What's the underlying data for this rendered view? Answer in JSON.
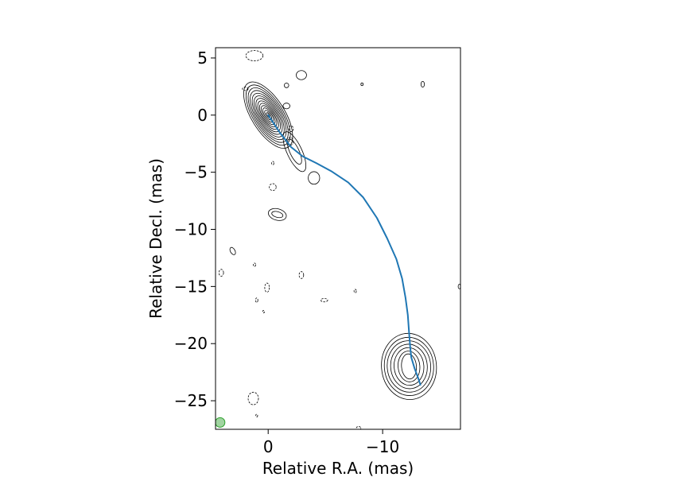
{
  "chart_data": {
    "type": "line",
    "xlabel": "Relative R.A. (mas)",
    "ylabel": "Relative Decl. (mas)",
    "xlim": [
      4.6,
      -16.8
    ],
    "ylim": [
      -27.5,
      5.9
    ],
    "x_ticks": [
      0,
      -10
    ],
    "x_tick_labels": [
      "0",
      "−10"
    ],
    "y_ticks": [
      5,
      0,
      -5,
      -10,
      -15,
      -20,
      -25
    ],
    "y_tick_labels": [
      "5",
      "0",
      "−5",
      "−10",
      "−15",
      "−20",
      "−25"
    ],
    "grid": false,
    "colors": {
      "jet_path": "#1f77b4",
      "contour": "#000000",
      "beam": "#2ca02c"
    },
    "series": [
      {
        "x": [
          0.0,
          -1.0,
          -2.0,
          -3.0,
          -4.2,
          -5.5,
          -7.0,
          -8.3,
          -9.5,
          -10.4,
          -11.2,
          -11.7,
          -12.0,
          -12.2,
          -12.3,
          -12.4,
          -12.5,
          -12.8,
          -13.1,
          -13.3
        ],
        "y": [
          0.0,
          -1.5,
          -2.8,
          -3.6,
          -4.2,
          -4.9,
          -5.9,
          -7.2,
          -9.0,
          -10.8,
          -12.6,
          -14.3,
          -16.0,
          -17.5,
          -18.9,
          -20.2,
          -21.2,
          -22.2,
          -23.0,
          -23.6
        ]
      }
    ],
    "contour_groups": [
      {
        "component": "core",
        "center": [
          0.0,
          0.0
        ],
        "levels": [
          {
            "a": 1.45,
            "b": 3.3,
            "rot": 32,
            "dash": false
          },
          {
            "a": 1.3,
            "b": 3.0,
            "rot": 32,
            "dash": false
          },
          {
            "a": 1.17,
            "b": 2.72,
            "rot": 32,
            "dash": false
          },
          {
            "a": 1.05,
            "b": 2.45,
            "rot": 32,
            "dash": false
          },
          {
            "a": 0.93,
            "b": 2.18,
            "rot": 32,
            "dash": false
          },
          {
            "a": 0.82,
            "b": 1.92,
            "rot": 32,
            "dash": false
          },
          {
            "a": 0.71,
            "b": 1.67,
            "rot": 32,
            "dash": false
          },
          {
            "a": 0.6,
            "b": 1.42,
            "rot": 32,
            "dash": false
          },
          {
            "a": 0.5,
            "b": 1.18,
            "rot": 32,
            "dash": false
          },
          {
            "a": 0.4,
            "b": 0.95,
            "rot": 32,
            "dash": false
          },
          {
            "a": 0.3,
            "b": 0.72,
            "rot": 32,
            "dash": false
          },
          {
            "a": 0.2,
            "b": 0.48,
            "rot": 32,
            "dash": false
          },
          {
            "a": 0.1,
            "b": 0.24,
            "rot": 32,
            "dash": false
          }
        ]
      },
      {
        "component": "inner-jet",
        "center": [
          -2.3,
          -3.2
        ],
        "levels": [
          {
            "a": 0.65,
            "b": 1.9,
            "rot": 25,
            "dash": false
          },
          {
            "a": 0.4,
            "b": 1.2,
            "rot": 25,
            "dash": false
          }
        ]
      },
      {
        "component": "jet-knot",
        "center": [
          -4.0,
          -5.5
        ],
        "levels": [
          {
            "a": 0.5,
            "b": 0.55,
            "rot": 0,
            "dash": false
          }
        ]
      },
      {
        "component": "southern-lobe",
        "center": [
          -12.3,
          -22.0
        ],
        "levels": [
          {
            "a": 2.4,
            "b": 2.9,
            "rot": 5,
            "dash": false
          },
          {
            "a": 2.15,
            "b": 2.55,
            "rot": 5,
            "dash": false
          },
          {
            "a": 1.9,
            "b": 2.25,
            "rot": 5,
            "dash": false
          },
          {
            "a": 1.6,
            "b": 1.95,
            "rot": 5,
            "dash": false
          },
          {
            "a": 1.3,
            "b": 1.65,
            "rot": 5,
            "dash": false
          },
          {
            "a": 0.95,
            "b": 1.35,
            "rot": 5,
            "dash": false
          },
          {
            "a": 0.65,
            "b": 1.1,
            "rot": 5,
            "dash": false
          }
        ]
      },
      {
        "component": "blob-8",
        "center": [
          -0.8,
          -8.7
        ],
        "levels": [
          {
            "a": 0.8,
            "b": 0.5,
            "rot": -15,
            "dash": false
          },
          {
            "a": 0.5,
            "b": 0.25,
            "rot": -15,
            "dash": false
          }
        ]
      },
      {
        "component": "noise",
        "center": [
          0,
          0
        ],
        "levels": [
          {
            "x": -2.9,
            "y": 3.5,
            "a": 0.45,
            "b": 0.4,
            "rot": 0,
            "dash": false
          },
          {
            "x": -1.6,
            "y": 0.8,
            "a": 0.3,
            "b": 0.25,
            "rot": 0,
            "dash": false
          },
          {
            "x": -1.6,
            "y": 2.6,
            "a": 0.2,
            "b": 0.2,
            "rot": 0,
            "dash": false
          },
          {
            "x": -8.2,
            "y": 2.7,
            "a": 0.1,
            "b": 0.12,
            "rot": 0,
            "dash": false
          },
          {
            "x": -13.5,
            "y": 2.7,
            "a": 0.15,
            "b": 0.25,
            "rot": 0,
            "dash": false
          },
          {
            "x": -2.0,
            "y": -1.2,
            "a": 0.2,
            "b": 0.25,
            "rot": 0,
            "dash": true
          },
          {
            "x": -1.9,
            "y": -2.3,
            "a": 0.3,
            "b": 0.35,
            "rot": 0,
            "dash": true
          },
          {
            "x": 1.2,
            "y": 5.2,
            "a": 0.75,
            "b": 0.45,
            "rot": 0,
            "dash": true
          },
          {
            "x": 2.0,
            "y": 2.3,
            "a": 0.25,
            "b": 0.15,
            "rot": 0,
            "dash": true
          },
          {
            "x": -0.4,
            "y": -4.2,
            "a": 0.1,
            "b": 0.15,
            "rot": 0,
            "dash": true
          },
          {
            "x": -0.4,
            "y": -6.3,
            "a": 0.3,
            "b": 0.3,
            "rot": 0,
            "dash": true
          },
          {
            "x": 3.1,
            "y": -11.9,
            "a": 0.2,
            "b": 0.35,
            "rot": 30,
            "dash": false
          },
          {
            "x": 1.2,
            "y": -13.1,
            "a": 0.1,
            "b": 0.15,
            "rot": 0,
            "dash": true
          },
          {
            "x": 4.1,
            "y": -13.8,
            "a": 0.2,
            "b": 0.3,
            "rot": 0,
            "dash": true
          },
          {
            "x": 0.1,
            "y": -15.1,
            "a": 0.2,
            "b": 0.4,
            "rot": 0,
            "dash": true
          },
          {
            "x": -2.9,
            "y": -14.0,
            "a": 0.2,
            "b": 0.3,
            "rot": 0,
            "dash": true
          },
          {
            "x": 1.0,
            "y": -16.2,
            "a": 0.1,
            "b": 0.2,
            "rot": 0,
            "dash": true
          },
          {
            "x": 0.4,
            "y": -17.2,
            "a": 0.08,
            "b": 0.1,
            "rot": 0,
            "dash": true
          },
          {
            "x": -4.9,
            "y": -16.2,
            "a": 0.3,
            "b": 0.15,
            "rot": 0,
            "dash": true
          },
          {
            "x": -7.6,
            "y": -15.4,
            "a": 0.1,
            "b": 0.15,
            "rot": 0,
            "dash": true
          },
          {
            "x": -16.7,
            "y": -15.0,
            "a": 0.1,
            "b": 0.2,
            "rot": 0,
            "dash": false
          },
          {
            "x": 1.3,
            "y": -24.8,
            "a": 0.45,
            "b": 0.55,
            "rot": 0,
            "dash": true
          },
          {
            "x": 1.0,
            "y": -26.3,
            "a": 0.08,
            "b": 0.12,
            "rot": 0,
            "dash": true
          },
          {
            "x": -7.9,
            "y": -27.4,
            "a": 0.2,
            "b": 0.15,
            "rot": 0,
            "dash": true
          }
        ]
      }
    ],
    "beam": {
      "x": 4.2,
      "y": -26.9,
      "a": 0.42,
      "b": 0.42
    }
  }
}
